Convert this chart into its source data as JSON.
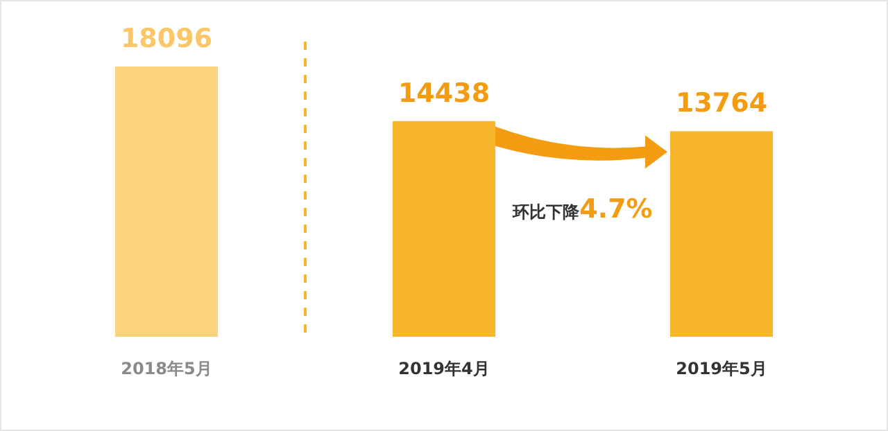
{
  "chart_data": {
    "type": "bar",
    "categories": [
      "2018年5月",
      "2019年4月",
      "2019年5月"
    ],
    "values": [
      18096,
      14438,
      13764
    ],
    "colors": [
      "#fdd27f",
      "#f8b62d",
      "#f8b62d"
    ],
    "data_labels": true,
    "annotations": [
      "环比下降4.7%"
    ]
  }
}
